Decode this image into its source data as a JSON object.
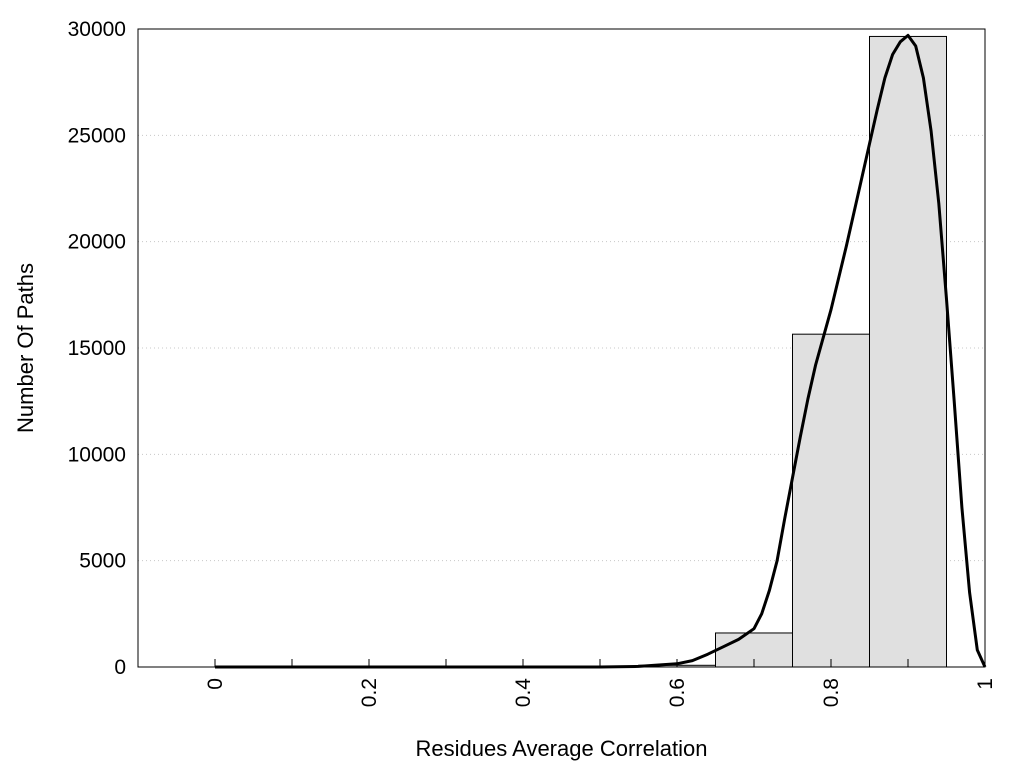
{
  "chart_data": {
    "type": "bar",
    "title": "",
    "xlabel": "Residues Average Correlation",
    "ylabel": "Number Of Paths",
    "xlim": [
      -0.1,
      1.0
    ],
    "ylim": [
      0,
      30000
    ],
    "x_ticks": [
      "0",
      "0.2",
      "0.4",
      "0.6",
      "0.8",
      "1"
    ],
    "x_tick_values": [
      0,
      0.2,
      0.4,
      0.6,
      0.8,
      1.0
    ],
    "y_ticks": [
      "0",
      "5000",
      "10000",
      "15000",
      "20000",
      "25000",
      "30000"
    ],
    "y_tick_values": [
      0,
      5000,
      10000,
      15000,
      20000,
      25000,
      30000
    ],
    "grid": "horizontal dotted",
    "bar_color": "#e0e0e0",
    "bar_edge_color": "#000000",
    "curve_color": "#000000",
    "bars": [
      {
        "x0": 0.0,
        "x1": 0.05,
        "value": 0
      },
      {
        "x0": 0.05,
        "x1": 0.15,
        "value": 0
      },
      {
        "x0": 0.15,
        "x1": 0.25,
        "value": 0
      },
      {
        "x0": 0.25,
        "x1": 0.35,
        "value": 0
      },
      {
        "x0": 0.35,
        "x1": 0.45,
        "value": 0
      },
      {
        "x0": 0.45,
        "x1": 0.55,
        "value": 0
      },
      {
        "x0": 0.55,
        "x1": 0.65,
        "value": 80
      },
      {
        "x0": 0.65,
        "x1": 0.75,
        "value": 1600
      },
      {
        "x0": 0.75,
        "x1": 0.85,
        "value": 15650
      },
      {
        "x0": 0.85,
        "x1": 0.95,
        "value": 29650
      }
    ],
    "curve": {
      "x": [
        0.0,
        0.5,
        0.55,
        0.6,
        0.62,
        0.64,
        0.66,
        0.68,
        0.7,
        0.71,
        0.72,
        0.73,
        0.74,
        0.75,
        0.76,
        0.77,
        0.78,
        0.8,
        0.82,
        0.84,
        0.85,
        0.86,
        0.87,
        0.88,
        0.89,
        0.9,
        0.91,
        0.92,
        0.93,
        0.94,
        0.95,
        0.96,
        0.97,
        0.98,
        0.99,
        1.0
      ],
      "y": [
        0,
        0,
        30,
        150,
        300,
        600,
        950,
        1300,
        1800,
        2500,
        3600,
        5000,
        7000,
        8900,
        10800,
        12600,
        14200,
        16800,
        19800,
        23000,
        24600,
        26200,
        27700,
        28800,
        29400,
        29700,
        29200,
        27700,
        25200,
        21800,
        17300,
        12500,
        7500,
        3500,
        800,
        0
      ]
    }
  }
}
